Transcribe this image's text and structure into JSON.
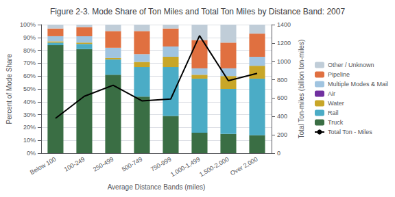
{
  "chart_data": {
    "type": "bar",
    "stacked": true,
    "title": "Figure 2-3. Mode Share of Ton Miles and Total Ton Miles by Distance Band: 2007",
    "xlabel": "Average Distance Bands (miles)",
    "ylabel": "Percent of Mode Share",
    "y2label": "Total Ton-miles (billion ton-miles)",
    "categories": [
      "Below 100",
      "100-249",
      "250-499",
      "500-749",
      "750-999",
      "1,000-1,499",
      "1,500-2,000",
      "Over 2,000"
    ],
    "series": [
      {
        "name": "Truck",
        "type": "bar",
        "color": "#3a6e44",
        "values": [
          84,
          81,
          61,
          44,
          29,
          16,
          15,
          14
        ]
      },
      {
        "name": "Rail",
        "type": "bar",
        "color": "#4bacc6",
        "values": [
          2,
          4,
          12,
          23,
          38,
          42,
          35,
          44
        ]
      },
      {
        "name": "Water",
        "type": "bar",
        "color": "#c8a628",
        "values": [
          1,
          1,
          1,
          4,
          8,
          3,
          10,
          10
        ]
      },
      {
        "name": "Air",
        "type": "bar",
        "color": "#7030a0",
        "values": [
          0,
          0,
          0,
          0,
          0,
          0,
          0,
          0
        ]
      },
      {
        "name": "Multiple Modes & Mail",
        "type": "bar",
        "color": "#a0c4e0",
        "values": [
          4,
          5,
          8,
          6,
          8,
          5,
          6,
          7
        ]
      },
      {
        "name": "Pipeline",
        "type": "bar",
        "color": "#e07040",
        "values": [
          6,
          7,
          13,
          18,
          14,
          22,
          20,
          18
        ]
      },
      {
        "name": "Other / Unknown",
        "type": "bar",
        "color": "#c0cdd8",
        "values": [
          3,
          2,
          5,
          5,
          3,
          12,
          14,
          7
        ]
      },
      {
        "name": "Total Ton - Miles",
        "type": "line",
        "axis": "y2",
        "color": "#000000",
        "values": [
          380,
          620,
          740,
          570,
          590,
          1280,
          790,
          870
        ]
      }
    ],
    "ylim": [
      0,
      100
    ],
    "yticks": [
      {
        "value": 0,
        "label": "0%"
      },
      {
        "value": 10,
        "label": "10%"
      },
      {
        "value": 20,
        "label": "20%"
      },
      {
        "value": 30,
        "label": "30%"
      },
      {
        "value": 40,
        "label": "40%"
      },
      {
        "value": 50,
        "label": "50%"
      },
      {
        "value": 60,
        "label": "60%"
      },
      {
        "value": 70,
        "label": "70%"
      },
      {
        "value": 80,
        "label": "80%"
      },
      {
        "value": 90,
        "label": "90%"
      },
      {
        "value": 100,
        "label": "100%"
      }
    ],
    "y2lim": [
      0,
      1400
    ],
    "y2ticks": [
      0,
      200,
      400,
      600,
      800,
      1000,
      1200,
      1400
    ],
    "grid": true,
    "legend": "right"
  }
}
